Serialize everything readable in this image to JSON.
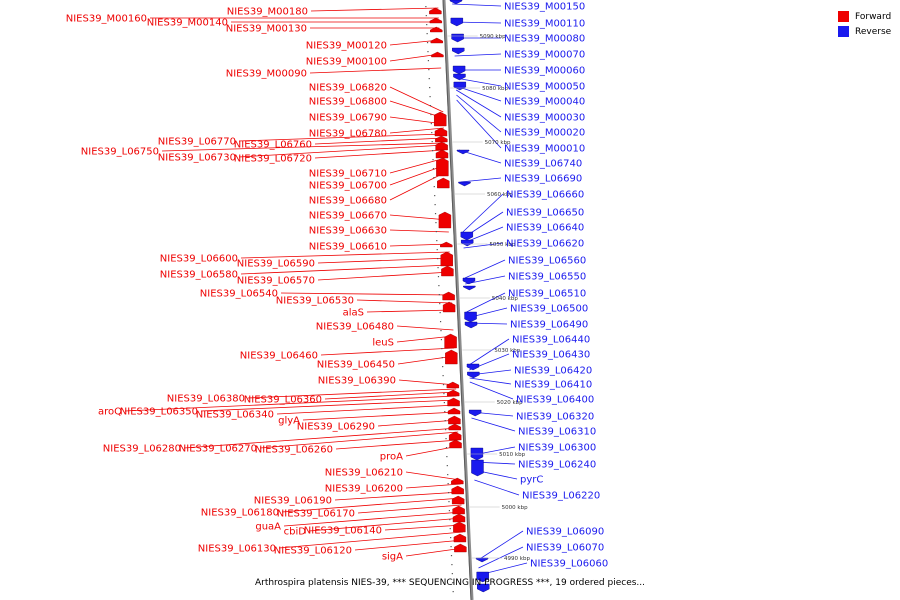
{
  "legend": {
    "forward": {
      "label": "Forward",
      "color": "#ee0000"
    },
    "reverse": {
      "label": "Reverse",
      "color": "#1a1aee"
    }
  },
  "caption": "Arthrospira platensis NIES-39, *** SEQUENCING IN PROGRESS ***, 19 ordered pieces...",
  "axis_ticks": [
    "5090 kbp",
    "5080 kbp",
    "5070 kbp",
    "5060 kbp",
    "5050 kbp",
    "5040 kbp",
    "5030 kbp",
    "5020 kbp",
    "5010 kbp",
    "5000 kbp",
    "4990 kbp"
  ],
  "forward_genes": [
    "NIES39_M00180",
    "NIES39_M00160",
    "NIES39_M00140",
    "NIES39_M00130",
    "NIES39_M00120",
    "NIES39_M00100",
    "NIES39_M00090",
    "NIES39_L06820",
    "NIES39_L06800",
    "NIES39_L06790",
    "NIES39_L06780",
    "NIES39_L06770",
    "NIES39_L06760",
    "NIES39_L06750",
    "NIES39_L06730",
    "NIES39_L06720",
    "NIES39_L06710",
    "NIES39_L06700",
    "NIES39_L06680",
    "NIES39_L06670",
    "NIES39_L06630",
    "NIES39_L06610",
    "NIES39_L06600",
    "NIES39_L06590",
    "NIES39_L06580",
    "NIES39_L06570",
    "NIES39_L06540",
    "NIES39_L06530",
    "alaS",
    "NIES39_L06480",
    "leuS",
    "NIES39_L06460",
    "NIES39_L06450",
    "NIES39_L06390",
    "NIES39_L06380",
    "NIES39_L06360",
    "aroQ",
    "NIES39_L06350",
    "NIES39_L06340",
    "glyA",
    "NIES39_L06290",
    "NIES39_L06280",
    "NIES39_L06270",
    "NIES39_L06260",
    "proA",
    "NIES39_L06210",
    "NIES39_L06200",
    "NIES39_L06190",
    "NIES39_L06180",
    "NIES39_L06170",
    "guaA",
    "cbiD",
    "NIES39_L06140",
    "NIES39_L06130",
    "NIES39_L06120",
    "sigA"
  ],
  "reverse_genes": [
    "NIES39_M00150",
    "NIES39_M00110",
    "NIES39_M00080",
    "NIES39_M00070",
    "NIES39_M00060",
    "NIES39_M00050",
    "NIES39_M00040",
    "NIES39_M00030",
    "NIES39_M00020",
    "NIES39_M00010",
    "NIES39_L06740",
    "NIES39_L06690",
    "NIES39_L06660",
    "NIES39_L06650",
    "NIES39_L06640",
    "NIES39_L06620",
    "NIES39_L06560",
    "NIES39_L06550",
    "NIES39_L06510",
    "NIES39_L06500",
    "NIES39_L06490",
    "NIES39_L06440",
    "NIES39_L06430",
    "NIES39_L06420",
    "NIES39_L06410",
    "NIES39_L06400",
    "NIES39_L06320",
    "NIES39_L06310",
    "NIES39_L06300",
    "NIES39_L06240",
    "pyrC",
    "NIES39_L06220",
    "NIES39_L06090",
    "NIES39_L06070",
    "NIES39_L06060"
  ]
}
